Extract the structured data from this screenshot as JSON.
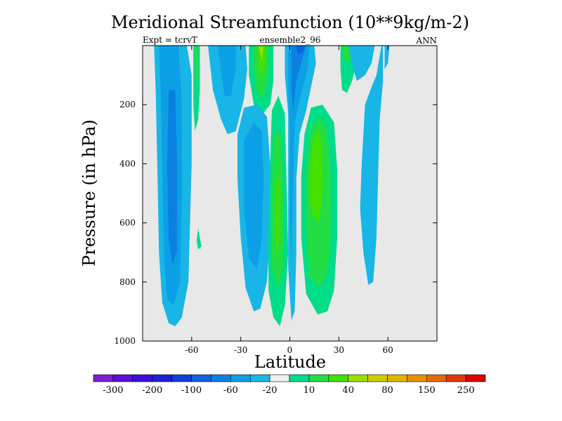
{
  "chart_data": {
    "type": "contour",
    "title": "Meridional Streamfunction (10**9kg/m-2)",
    "subtitle_left": "Expt = tcrvT",
    "subtitle_center": "ensemble2_96",
    "subtitle_right": "ANN",
    "xlabel": "Latitude",
    "ylabel": "Pressure (in hPa)",
    "xlim": [
      -90,
      90
    ],
    "ylim": [
      1000,
      0
    ],
    "x_ticks": [
      -60,
      -30,
      0,
      30,
      60
    ],
    "x_tick_labels": [
      "-60",
      "-30",
      "0",
      "30",
      "60"
    ],
    "y_ticks": [
      200,
      400,
      600,
      800,
      1000
    ],
    "y_tick_labels": [
      "200",
      "400",
      "600",
      "800",
      "1000"
    ],
    "background_color": "#e8e8e8",
    "colorbar": {
      "levels": [
        -300,
        -250,
        -200,
        -150,
        -100,
        -80,
        -60,
        -40,
        -20,
        -10,
        10,
        20,
        40,
        60,
        80,
        100,
        150,
        200,
        250,
        300
      ],
      "labels": [
        "-300",
        "-200",
        "-100",
        "-60",
        "-20",
        "10",
        "40",
        "80",
        "150",
        "250"
      ],
      "colors": [
        "#7b1fd1",
        "#5a10d8",
        "#3a10e0",
        "#1f1fd6",
        "#1040d8",
        "#0c62e0",
        "#0b80e0",
        "#0ba0e6",
        "#18b6e6",
        "#f0f0f0",
        "#00dd88",
        "#22dd44",
        "#44e000",
        "#99dd00",
        "#cccc00",
        "#e0b400",
        "#e89000",
        "#e46a00",
        "#dd3a00",
        "#dd0000"
      ]
    },
    "regions": [
      {
        "name": "sh-cell-outer",
        "color": "#18b6e6",
        "points": [
          [
            -83,
            0
          ],
          [
            -63,
            0
          ],
          [
            -60,
            100
          ],
          [
            -60,
            400
          ],
          [
            -62,
            800
          ],
          [
            -66,
            920
          ],
          [
            -70,
            950
          ],
          [
            -74,
            940
          ],
          [
            -78,
            870
          ],
          [
            -80,
            700
          ],
          [
            -81,
            400
          ],
          [
            -82,
            150
          ]
        ]
      },
      {
        "name": "sh-cell-mid",
        "color": "#0ba0e6",
        "points": [
          [
            -80,
            0
          ],
          [
            -68,
            0
          ],
          [
            -66,
            200
          ],
          [
            -66,
            500
          ],
          [
            -67,
            800
          ],
          [
            -71,
            880
          ],
          [
            -75,
            860
          ],
          [
            -77,
            700
          ],
          [
            -78,
            400
          ],
          [
            -79,
            150
          ]
        ]
      },
      {
        "name": "sh-cell-core",
        "color": "#0b80e0",
        "points": [
          [
            -74,
            150
          ],
          [
            -70,
            150
          ],
          [
            -69,
            400
          ],
          [
            -69,
            700
          ],
          [
            -72,
            740
          ],
          [
            -74,
            650
          ],
          [
            -75,
            400
          ]
        ]
      },
      {
        "name": "sh-pos-strip-outer",
        "color": "#00dd88",
        "points": [
          [
            -59,
            0
          ],
          [
            -55,
            0
          ],
          [
            -55,
            150
          ],
          [
            -56,
            250
          ],
          [
            -58,
            290
          ],
          [
            -59,
            200
          ]
        ]
      },
      {
        "name": "sh-pos-strip-inner",
        "color": "#22dd44",
        "points": [
          [
            -58,
            0
          ],
          [
            -56,
            0
          ],
          [
            -56,
            100
          ],
          [
            -57,
            130
          ],
          [
            -58,
            80
          ]
        ]
      },
      {
        "name": "sh-pos-blob",
        "color": "#00dd88",
        "points": [
          [
            -56,
            620
          ],
          [
            -54,
            680
          ],
          [
            -56,
            690
          ],
          [
            -57,
            660
          ]
        ]
      },
      {
        "name": "upper-neg-outer",
        "color": "#18b6e6",
        "points": [
          [
            -50,
            0
          ],
          [
            -27,
            0
          ],
          [
            -26,
            80
          ],
          [
            -28,
            180
          ],
          [
            -33,
            290
          ],
          [
            -38,
            300
          ],
          [
            -42,
            250
          ],
          [
            -47,
            150
          ]
        ]
      },
      {
        "name": "upper-neg-inner",
        "color": "#0ba0e6",
        "points": [
          [
            -44,
            0
          ],
          [
            -33,
            0
          ],
          [
            -33,
            80
          ],
          [
            -36,
            170
          ],
          [
            -40,
            170
          ],
          [
            -42,
            90
          ]
        ]
      },
      {
        "name": "upper-pos-outer",
        "color": "#00dd88",
        "points": [
          [
            -25,
            0
          ],
          [
            -10,
            0
          ],
          [
            -10,
            120
          ],
          [
            -12,
            200
          ],
          [
            -18,
            240
          ],
          [
            -22,
            200
          ],
          [
            -25,
            100
          ]
        ]
      },
      {
        "name": "upper-pos-mid",
        "color": "#22dd44",
        "points": [
          [
            -22,
            0
          ],
          [
            -13,
            0
          ],
          [
            -13,
            100
          ],
          [
            -16,
            180
          ],
          [
            -20,
            160
          ],
          [
            -22,
            80
          ]
        ]
      },
      {
        "name": "upper-pos-core",
        "color": "#44e000",
        "points": [
          [
            -20,
            0
          ],
          [
            -15,
            0
          ],
          [
            -15,
            60
          ],
          [
            -17,
            110
          ],
          [
            -19,
            80
          ]
        ]
      },
      {
        "name": "upper-pos-peak",
        "color": "#99dd00",
        "points": [
          [
            -19,
            0
          ],
          [
            -16,
            0
          ],
          [
            -17,
            50
          ],
          [
            -18,
            30
          ]
        ]
      },
      {
        "name": "lower-neg-left-outer",
        "color": "#18b6e6",
        "points": [
          [
            -32,
            300
          ],
          [
            -28,
            210
          ],
          [
            -20,
            200
          ],
          [
            -14,
            240
          ],
          [
            -12,
            400
          ],
          [
            -12,
            650
          ],
          [
            -14,
            800
          ],
          [
            -18,
            890
          ],
          [
            -22,
            900
          ],
          [
            -27,
            820
          ],
          [
            -30,
            650
          ],
          [
            -32,
            450
          ]
        ]
      },
      {
        "name": "lower-neg-left-inner",
        "color": "#0ba0e6",
        "points": [
          [
            -28,
            320
          ],
          [
            -22,
            260
          ],
          [
            -17,
            290
          ],
          [
            -16,
            450
          ],
          [
            -17,
            650
          ],
          [
            -20,
            760
          ],
          [
            -25,
            720
          ],
          [
            -28,
            550
          ]
        ]
      },
      {
        "name": "eq-pos-outer",
        "color": "#00dd88",
        "points": [
          [
            -11,
            220
          ],
          [
            -7,
            170
          ],
          [
            -3,
            230
          ],
          [
            -2,
            450
          ],
          [
            -1,
            700
          ],
          [
            -3,
            880
          ],
          [
            -6,
            950
          ],
          [
            -10,
            920
          ],
          [
            -13,
            830
          ],
          [
            -13,
            650
          ],
          [
            -12,
            400
          ]
        ]
      },
      {
        "name": "eq-pos-mid",
        "color": "#22dd44",
        "points": [
          [
            -10,
            300
          ],
          [
            -5,
            300
          ],
          [
            -4,
            500
          ],
          [
            -4,
            750
          ],
          [
            -7,
            820
          ],
          [
            -11,
            750
          ],
          [
            -11,
            500
          ]
        ]
      },
      {
        "name": "eq-pos-core",
        "color": "#44e000",
        "points": [
          [
            -8,
            450
          ],
          [
            -6,
            450
          ],
          [
            -6,
            650
          ],
          [
            -8,
            720
          ],
          [
            -9,
            600
          ]
        ]
      },
      {
        "name": "eq-neg-outer",
        "color": "#18b6e6",
        "points": [
          [
            -3,
            0
          ],
          [
            15,
            0
          ],
          [
            16,
            60
          ],
          [
            13,
            140
          ],
          [
            10,
            220
          ],
          [
            6,
            300
          ],
          [
            4,
            450
          ],
          [
            4,
            700
          ],
          [
            3,
            900
          ],
          [
            1,
            930
          ],
          [
            -1,
            750
          ],
          [
            -1,
            400
          ],
          [
            -1,
            230
          ],
          [
            -3,
            100
          ]
        ]
      },
      {
        "name": "eq-neg-mid",
        "color": "#0ba0e6",
        "points": [
          [
            -1,
            0
          ],
          [
            12,
            0
          ],
          [
            11,
            80
          ],
          [
            7,
            160
          ],
          [
            3,
            260
          ],
          [
            2,
            500
          ],
          [
            1,
            720
          ],
          [
            0,
            580
          ],
          [
            0,
            300
          ],
          [
            -1,
            120
          ]
        ]
      },
      {
        "name": "eq-neg-inner",
        "color": "#0b80e0",
        "points": [
          [
            1,
            0
          ],
          [
            10,
            0
          ],
          [
            8,
            40
          ],
          [
            4,
            120
          ],
          [
            2,
            220
          ],
          [
            1,
            150
          ]
        ]
      },
      {
        "name": "eq-neg-core",
        "color": "#0c62e0",
        "points": [
          [
            4,
            0
          ],
          [
            10,
            0
          ],
          [
            8,
            20
          ],
          [
            5,
            30
          ]
        ]
      },
      {
        "name": "upper-pos-right-outer",
        "color": "#00dd88",
        "points": [
          [
            31,
            0
          ],
          [
            42,
            0
          ],
          [
            41,
            60
          ],
          [
            38,
            120
          ],
          [
            35,
            160
          ],
          [
            32,
            150
          ],
          [
            31,
            80
          ]
        ]
      },
      {
        "name": "upper-pos-right-inner",
        "color": "#22dd44",
        "points": [
          [
            32,
            0
          ],
          [
            39,
            0
          ],
          [
            38,
            40
          ],
          [
            35,
            60
          ],
          [
            33,
            40
          ]
        ]
      },
      {
        "name": "nh-pos-outer",
        "color": "#00dd88",
        "points": [
          [
            7,
            440
          ],
          [
            9,
            300
          ],
          [
            13,
            210
          ],
          [
            20,
            200
          ],
          [
            27,
            260
          ],
          [
            29,
            420
          ],
          [
            29,
            650
          ],
          [
            27,
            830
          ],
          [
            23,
            900
          ],
          [
            17,
            910
          ],
          [
            10,
            840
          ],
          [
            7,
            650
          ]
        ]
      },
      {
        "name": "nh-pos-mid",
        "color": "#22dd44",
        "points": [
          [
            10,
            420
          ],
          [
            13,
            280
          ],
          [
            18,
            240
          ],
          [
            23,
            290
          ],
          [
            25,
            420
          ],
          [
            25,
            650
          ],
          [
            23,
            770
          ],
          [
            18,
            820
          ],
          [
            12,
            780
          ],
          [
            10,
            620
          ]
        ]
      },
      {
        "name": "nh-pos-core",
        "color": "#44e000",
        "points": [
          [
            12,
            450
          ],
          [
            14,
            320
          ],
          [
            18,
            280
          ],
          [
            20,
            350
          ],
          [
            20,
            500
          ],
          [
            18,
            600
          ],
          [
            14,
            570
          ],
          [
            12,
            520
          ]
        ]
      },
      {
        "name": "nh-neg-right",
        "color": "#18b6e6",
        "points": [
          [
            50,
            0
          ],
          [
            56,
            0
          ],
          [
            53,
            100
          ],
          [
            50,
            140
          ],
          [
            46,
            200
          ],
          [
            44,
            400
          ],
          [
            43,
            550
          ],
          [
            45,
            700
          ],
          [
            48,
            810
          ],
          [
            51,
            800
          ],
          [
            53,
            650
          ],
          [
            54,
            450
          ],
          [
            55,
            250
          ],
          [
            57,
            120
          ],
          [
            57,
            0
          ]
        ]
      },
      {
        "name": "upper-neg-right-outer",
        "color": "#18b6e6",
        "points": [
          [
            36,
            0
          ],
          [
            52,
            0
          ],
          [
            50,
            60
          ],
          [
            46,
            100
          ],
          [
            41,
            120
          ],
          [
            38,
            60
          ]
        ]
      },
      {
        "name": "far-right-neg-strip",
        "color": "#18b6e6",
        "points": [
          [
            58,
            0
          ],
          [
            61,
            0
          ],
          [
            60,
            60
          ],
          [
            58,
            80
          ]
        ]
      }
    ]
  }
}
